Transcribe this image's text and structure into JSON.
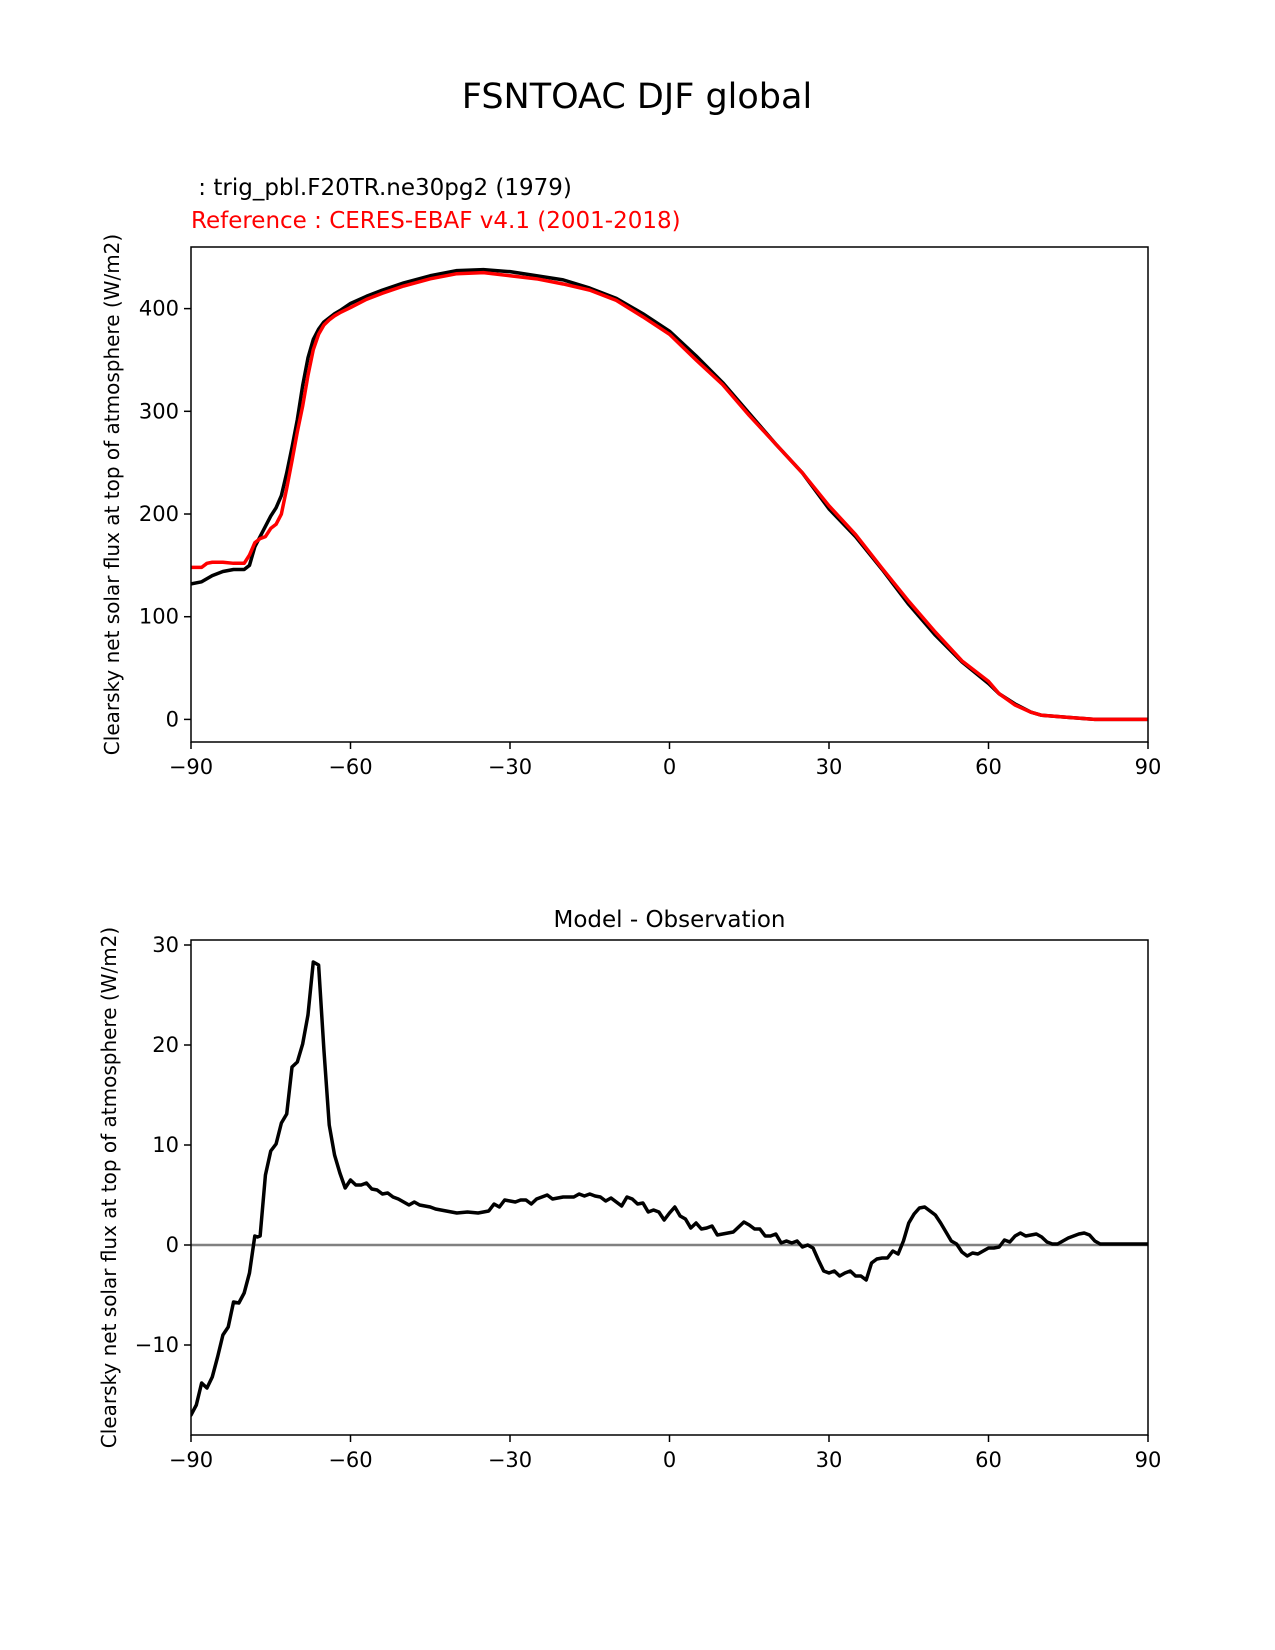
{
  "figure": {
    "title": "FSNTOAC DJF global"
  },
  "chart_data": [
    {
      "type": "line",
      "title": "",
      "header_lines": [
        {
          "text": " : trig_pbl.F20TR.ne30pg2 (1979)",
          "color": "#000000"
        },
        {
          "text": "Reference : CERES-EBAF v4.1 (2001-2018)",
          "color": "#ff0000"
        }
      ],
      "xlabel": "",
      "ylabel": "Clearsky net solar flux at top of atmosphere (W/m2)",
      "xlim": [
        -90,
        90
      ],
      "ylim": [
        -22,
        460
      ],
      "xticks": [
        -90,
        -60,
        -30,
        0,
        30,
        60,
        90
      ],
      "xtick_labels": [
        "−90",
        "−60",
        "−30",
        "0",
        "30",
        "60",
        "90"
      ],
      "yticks": [
        0,
        100,
        200,
        300,
        400
      ],
      "ytick_labels": [
        "0",
        "100",
        "200",
        "300",
        "400"
      ],
      "grid": false,
      "series": [
        {
          "color": "#000000",
          "x": [
            -90,
            -88,
            -86,
            -84,
            -82,
            -80,
            -79,
            -78,
            -77,
            -76,
            -75,
            -74,
            -73,
            -72,
            -71,
            -70,
            -69,
            -68,
            -67,
            -66,
            -65,
            -64,
            -63,
            -62,
            -60,
            -57,
            -54,
            -50,
            -45,
            -40,
            -35,
            -30,
            -25,
            -20,
            -15,
            -10,
            -5,
            0,
            5,
            10,
            15,
            20,
            25,
            30,
            35,
            40,
            45,
            50,
            55,
            60,
            62,
            65,
            68,
            70,
            75,
            80,
            85,
            90
          ],
          "y": [
            132,
            134,
            140,
            144,
            146,
            146,
            150,
            168,
            178,
            188,
            198,
            206,
            218,
            240,
            265,
            292,
            325,
            352,
            370,
            380,
            387,
            391,
            395,
            398,
            405,
            412,
            418,
            425,
            432,
            437,
            438,
            436,
            432,
            428,
            420,
            410,
            395,
            378,
            354,
            328,
            298,
            268,
            240,
            205,
            178,
            146,
            112,
            82,
            56,
            35,
            25,
            15,
            7,
            4,
            2,
            0,
            0,
            0
          ]
        },
        {
          "color": "#ff0000",
          "x": [
            -90,
            -88,
            -87,
            -86,
            -84,
            -82,
            -80,
            -79,
            -78,
            -77,
            -76,
            -75,
            -74,
            -73,
            -72,
            -71,
            -70,
            -69,
            -68,
            -67,
            -66,
            -65,
            -64,
            -63,
            -62,
            -60,
            -57,
            -54,
            -50,
            -45,
            -40,
            -35,
            -30,
            -25,
            -20,
            -15,
            -10,
            -5,
            0,
            5,
            10,
            15,
            20,
            25,
            30,
            35,
            40,
            45,
            50,
            55,
            60,
            62,
            65,
            68,
            70,
            75,
            80,
            85,
            90
          ],
          "y": [
            148,
            148,
            152,
            153,
            153,
            152,
            152,
            160,
            172,
            176,
            178,
            186,
            190,
            200,
            225,
            252,
            280,
            305,
            335,
            360,
            375,
            384,
            389,
            393,
            396,
            401,
            409,
            415,
            422,
            429,
            434,
            435,
            432,
            429,
            424,
            418,
            408,
            392,
            375,
            350,
            326,
            296,
            268,
            240,
            208,
            180,
            147,
            115,
            85,
            57,
            37,
            25,
            14,
            7,
            4,
            2,
            0,
            0,
            0
          ]
        }
      ]
    },
    {
      "type": "line",
      "title": "Model - Observation",
      "xlabel": "",
      "ylabel": "Clearsky net solar flux at top of atmosphere (W/m2)",
      "xlim": [
        -90,
        90
      ],
      "ylim": [
        -19,
        30.5
      ],
      "xticks": [
        -90,
        -60,
        -30,
        0,
        30,
        60,
        90
      ],
      "xtick_labels": [
        "−90",
        "−60",
        "−30",
        "0",
        "30",
        "60",
        "90"
      ],
      "yticks": [
        -10,
        0,
        10,
        20,
        30
      ],
      "ytick_labels": [
        "−10",
        "0",
        "10",
        "20",
        "30"
      ],
      "grid": false,
      "zero_line": {
        "y": 0,
        "color": "#808080"
      },
      "series": [
        {
          "color": "#000000",
          "x": [
            -90,
            -89,
            -88,
            -87,
            -86,
            -85,
            -84,
            -83,
            -82,
            -81,
            -80,
            -79,
            -78,
            -77.5,
            -77,
            -76,
            -75,
            -74,
            -73,
            -72,
            -71,
            -70,
            -69,
            -68,
            -67,
            -66,
            -65,
            -64,
            -63,
            -62,
            -61,
            -60,
            -59,
            -58,
            -57,
            -56,
            -55,
            -54,
            -53,
            -52,
            -51,
            -50,
            -49,
            -48,
            -47,
            -46,
            -45,
            -44,
            -42,
            -40,
            -38,
            -36,
            -34,
            -33,
            -32,
            -31,
            -30,
            -29,
            -28,
            -27,
            -26,
            -25,
            -24,
            -23,
            -22,
            -21,
            -20,
            -19,
            -18,
            -17,
            -16,
            -15,
            -14,
            -13,
            -12,
            -11,
            -10,
            -9,
            -8,
            -7,
            -6,
            -5,
            -4,
            -3,
            -2,
            -1,
            0,
            1,
            2,
            3,
            4,
            5,
            6,
            7,
            8,
            9,
            10,
            11,
            12,
            13,
            14,
            15,
            16,
            17,
            18,
            19,
            20,
            21,
            22,
            23,
            24,
            25,
            26,
            27,
            28,
            29,
            30,
            31,
            32,
            33,
            34,
            35,
            36,
            37,
            38,
            39,
            40,
            41,
            42,
            43,
            44,
            45,
            46,
            47,
            48,
            49,
            50,
            51,
            52,
            53,
            54,
            55,
            56,
            57,
            58,
            59,
            60,
            61,
            62,
            63,
            64,
            65,
            66,
            67,
            68,
            69,
            70,
            71,
            72,
            73,
            74,
            75,
            76,
            77,
            78,
            79,
            80,
            81,
            82,
            85,
            90
          ],
          "y": [
            -17,
            -16,
            -13.8,
            -14.3,
            -13.2,
            -11.2,
            -9,
            -8.2,
            -5.7,
            -5.8,
            -4.8,
            -2.8,
            0.9,
            0.8,
            0.9,
            7,
            9.4,
            10.1,
            12.2,
            13.1,
            17.8,
            18.3,
            20.1,
            23,
            28.3,
            28,
            19.5,
            12,
            9,
            7.2,
            5.7,
            6.5,
            6,
            6,
            6.2,
            5.6,
            5.5,
            5.1,
            5.2,
            4.8,
            4.6,
            4.3,
            4,
            4.3,
            4,
            3.9,
            3.8,
            3.6,
            3.4,
            3.2,
            3.3,
            3.2,
            3.4,
            4.1,
            3.8,
            4.5,
            4.4,
            4.3,
            4.5,
            4.5,
            4.1,
            4.6,
            4.8,
            5,
            4.6,
            4.7,
            4.8,
            4.8,
            4.8,
            5.1,
            4.9,
            5.1,
            4.9,
            4.8,
            4.4,
            4.7,
            4.3,
            3.9,
            4.8,
            4.6,
            4.1,
            4.2,
            3.3,
            3.5,
            3.3,
            2.5,
            3.2,
            3.8,
            2.9,
            2.6,
            1.7,
            2.2,
            1.6,
            1.7,
            1.9,
            1,
            1.1,
            1.2,
            1.3,
            1.8,
            2.3,
            2,
            1.6,
            1.6,
            0.9,
            0.9,
            1.1,
            0.2,
            0.4,
            0.2,
            0.4,
            -0.2,
            0,
            -0.3,
            -1.5,
            -2.6,
            -2.8,
            -2.6,
            -3.1,
            -2.8,
            -2.6,
            -3.1,
            -3.1,
            -3.5,
            -1.8,
            -1.4,
            -1.3,
            -1.3,
            -0.6,
            -0.9,
            0.4,
            2.2,
            3.1,
            3.7,
            3.8,
            3.4,
            3,
            2.2,
            1.3,
            0.4,
            0.1,
            -0.7,
            -1.1,
            -0.8,
            -0.9,
            -0.6,
            -0.3,
            -0.3,
            -0.2,
            0.5,
            0.3,
            0.9,
            1.2,
            0.9,
            1,
            1.1,
            0.8,
            0.3,
            0.1,
            0.1,
            0.4,
            0.7,
            0.9,
            1.1,
            1.2,
            1,
            0.4,
            0.1,
            0.1,
            0.1,
            0.1
          ]
        }
      ]
    }
  ]
}
